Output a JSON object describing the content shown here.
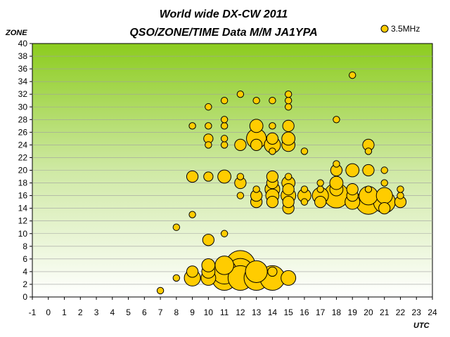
{
  "chart_data": {
    "type": "scatter",
    "title": "World wide DX-CW 2011",
    "subtitle": "QSO/ZONE/TIME Data M/M JA1YPA",
    "xlabel": "UTC",
    "ylabel": "ZONE",
    "xlim": [
      -1,
      24
    ],
    "ylim": [
      0,
      40
    ],
    "xticks": [
      -1,
      0,
      1,
      2,
      3,
      4,
      5,
      6,
      7,
      8,
      9,
      10,
      11,
      12,
      13,
      14,
      15,
      16,
      17,
      18,
      19,
      20,
      21,
      22,
      23,
      24
    ],
    "yticks": [
      0,
      2,
      4,
      6,
      8,
      10,
      12,
      14,
      16,
      18,
      20,
      22,
      24,
      26,
      28,
      30,
      32,
      34,
      36,
      38,
      40
    ],
    "grid": true,
    "legend": "top-right",
    "colors": {
      "marker_fill": "#ffcc00",
      "marker_stroke": "#000000",
      "plot_top": "#8ccc1e",
      "plot_bottom": "#ffffff"
    },
    "series": [
      {
        "name": "3.5MHz",
        "points": [
          {
            "x": 7,
            "y": 1,
            "size": 1
          },
          {
            "x": 8,
            "y": 3,
            "size": 1
          },
          {
            "x": 8,
            "y": 11,
            "size": 1
          },
          {
            "x": 9,
            "y": 3,
            "size": 6
          },
          {
            "x": 9,
            "y": 4,
            "size": 3
          },
          {
            "x": 9,
            "y": 13,
            "size": 1
          },
          {
            "x": 9,
            "y": 19,
            "size": 3
          },
          {
            "x": 9,
            "y": 27,
            "size": 1
          },
          {
            "x": 10,
            "y": 3,
            "size": 5
          },
          {
            "x": 10,
            "y": 4,
            "size": 4
          },
          {
            "x": 10,
            "y": 5,
            "size": 4
          },
          {
            "x": 10,
            "y": 9,
            "size": 3
          },
          {
            "x": 10,
            "y": 19,
            "size": 2
          },
          {
            "x": 10,
            "y": 24,
            "size": 1
          },
          {
            "x": 10,
            "y": 25,
            "size": 2
          },
          {
            "x": 10,
            "y": 27,
            "size": 1
          },
          {
            "x": 10,
            "y": 30,
            "size": 1
          },
          {
            "x": 11,
            "y": 3,
            "size": 14
          },
          {
            "x": 11,
            "y": 4,
            "size": 14
          },
          {
            "x": 11,
            "y": 5,
            "size": 8
          },
          {
            "x": 11,
            "y": 10,
            "size": 1
          },
          {
            "x": 11,
            "y": 19,
            "size": 4
          },
          {
            "x": 11,
            "y": 24,
            "size": 1
          },
          {
            "x": 11,
            "y": 25,
            "size": 1
          },
          {
            "x": 11,
            "y": 27,
            "size": 1
          },
          {
            "x": 11,
            "y": 28,
            "size": 1
          },
          {
            "x": 11,
            "y": 31,
            "size": 1
          },
          {
            "x": 12,
            "y": 3,
            "size": 14
          },
          {
            "x": 12,
            "y": 4,
            "size": 16
          },
          {
            "x": 12,
            "y": 5,
            "size": 20
          },
          {
            "x": 12,
            "y": 16,
            "size": 1
          },
          {
            "x": 12,
            "y": 18,
            "size": 3
          },
          {
            "x": 12,
            "y": 19,
            "size": 1
          },
          {
            "x": 12,
            "y": 24,
            "size": 3
          },
          {
            "x": 12,
            "y": 32,
            "size": 1
          },
          {
            "x": 13,
            "y": 3,
            "size": 14
          },
          {
            "x": 13,
            "y": 4,
            "size": 11
          },
          {
            "x": 13,
            "y": 15,
            "size": 3
          },
          {
            "x": 13,
            "y": 16,
            "size": 3
          },
          {
            "x": 13,
            "y": 17,
            "size": 1
          },
          {
            "x": 13,
            "y": 24,
            "size": 3
          },
          {
            "x": 13,
            "y": 25,
            "size": 9
          },
          {
            "x": 13,
            "y": 27,
            "size": 4
          },
          {
            "x": 13,
            "y": 31,
            "size": 1
          },
          {
            "x": 14,
            "y": 3,
            "size": 14
          },
          {
            "x": 14,
            "y": 4,
            "size": 2
          },
          {
            "x": 14,
            "y": 15,
            "size": 3
          },
          {
            "x": 14,
            "y": 16,
            "size": 4
          },
          {
            "x": 14,
            "y": 17,
            "size": 5
          },
          {
            "x": 14,
            "y": 18,
            "size": 3
          },
          {
            "x": 14,
            "y": 19,
            "size": 3
          },
          {
            "x": 14,
            "y": 23,
            "size": 1
          },
          {
            "x": 14,
            "y": 24,
            "size": 6
          },
          {
            "x": 14,
            "y": 25,
            "size": 3
          },
          {
            "x": 14,
            "y": 27,
            "size": 1
          },
          {
            "x": 14,
            "y": 31,
            "size": 1
          },
          {
            "x": 15,
            "y": 3,
            "size": 5
          },
          {
            "x": 15,
            "y": 14,
            "size": 3
          },
          {
            "x": 15,
            "y": 15,
            "size": 3
          },
          {
            "x": 15,
            "y": 16,
            "size": 5
          },
          {
            "x": 15,
            "y": 17,
            "size": 3
          },
          {
            "x": 15,
            "y": 18,
            "size": 4
          },
          {
            "x": 15,
            "y": 19,
            "size": 1
          },
          {
            "x": 15,
            "y": 24,
            "size": 4
          },
          {
            "x": 15,
            "y": 25,
            "size": 4
          },
          {
            "x": 15,
            "y": 27,
            "size": 3
          },
          {
            "x": 15,
            "y": 30,
            "size": 1
          },
          {
            "x": 15,
            "y": 31,
            "size": 1
          },
          {
            "x": 15,
            "y": 32,
            "size": 1
          },
          {
            "x": 16,
            "y": 15,
            "size": 1
          },
          {
            "x": 16,
            "y": 16,
            "size": 4
          },
          {
            "x": 16,
            "y": 17,
            "size": 1
          },
          {
            "x": 16,
            "y": 23,
            "size": 1
          },
          {
            "x": 17,
            "y": 15,
            "size": 3
          },
          {
            "x": 17,
            "y": 16,
            "size": 6
          },
          {
            "x": 17,
            "y": 17,
            "size": 1
          },
          {
            "x": 17,
            "y": 18,
            "size": 1
          },
          {
            "x": 18,
            "y": 16,
            "size": 14
          },
          {
            "x": 18,
            "y": 17,
            "size": 4
          },
          {
            "x": 18,
            "y": 18,
            "size": 4
          },
          {
            "x": 18,
            "y": 20,
            "size": 3
          },
          {
            "x": 18,
            "y": 21,
            "size": 1
          },
          {
            "x": 18,
            "y": 28,
            "size": 1
          },
          {
            "x": 19,
            "y": 15,
            "size": 5
          },
          {
            "x": 19,
            "y": 16,
            "size": 3
          },
          {
            "x": 19,
            "y": 17,
            "size": 3
          },
          {
            "x": 19,
            "y": 20,
            "size": 4
          },
          {
            "x": 19,
            "y": 35,
            "size": 1
          },
          {
            "x": 20,
            "y": 15,
            "size": 14
          },
          {
            "x": 20,
            "y": 16,
            "size": 8
          },
          {
            "x": 20,
            "y": 17,
            "size": 1
          },
          {
            "x": 20,
            "y": 20,
            "size": 3
          },
          {
            "x": 20,
            "y": 23,
            "size": 1
          },
          {
            "x": 20,
            "y": 24,
            "size": 3
          },
          {
            "x": 21,
            "y": 14,
            "size": 3
          },
          {
            "x": 21,
            "y": 15,
            "size": 11
          },
          {
            "x": 21,
            "y": 16,
            "size": 6
          },
          {
            "x": 21,
            "y": 18,
            "size": 1
          },
          {
            "x": 21,
            "y": 20,
            "size": 1
          },
          {
            "x": 22,
            "y": 15,
            "size": 3
          },
          {
            "x": 22,
            "y": 16,
            "size": 1
          },
          {
            "x": 22,
            "y": 17,
            "size": 1
          }
        ]
      }
    ]
  }
}
